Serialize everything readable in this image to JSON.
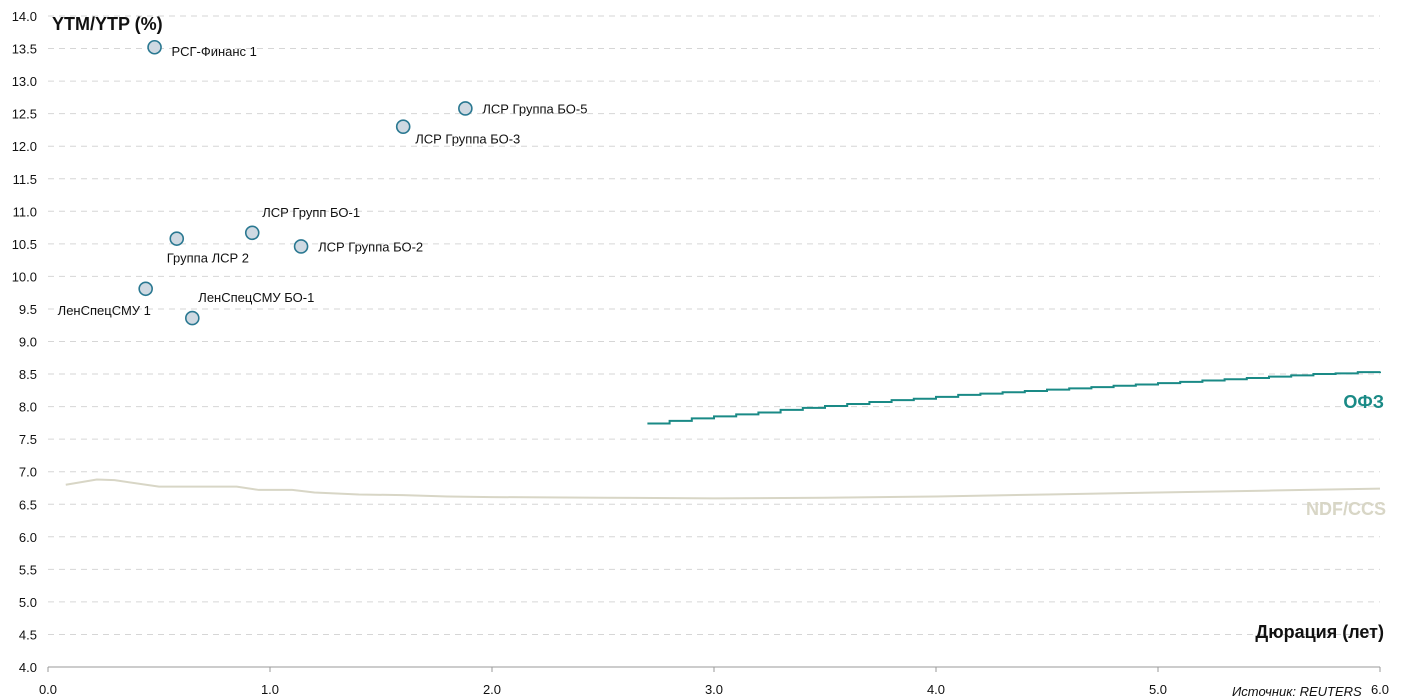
{
  "chart_data": {
    "type": "scatter",
    "ylabel": "YTM/YTP (%)",
    "xlabel": "Дюрация (лет)",
    "source": "Источник: REUTERS",
    "xlim": [
      0,
      6
    ],
    "ylim": [
      4,
      14
    ],
    "x_ticks": [
      "0.0",
      "1.0",
      "2.0",
      "3.0",
      "4.0",
      "5.0",
      "6.0"
    ],
    "y_ticks": [
      "4.0",
      "4.5",
      "5.0",
      "5.5",
      "6.0",
      "6.5",
      "7.0",
      "7.5",
      "8.0",
      "8.5",
      "9.0",
      "9.5",
      "10.0",
      "10.5",
      "11.0",
      "11.5",
      "12.0",
      "12.5",
      "13.0",
      "13.5",
      "14.0"
    ],
    "grid": true,
    "points": [
      {
        "label": "РСГ-Финанс 1",
        "x": 0.48,
        "y": 13.52
      },
      {
        "label": "ЛСР Группа БО-5",
        "x": 1.88,
        "y": 12.58
      },
      {
        "label": "ЛСР Группа БО-3",
        "x": 1.6,
        "y": 12.3
      },
      {
        "label": "ЛСР Групп БО-1",
        "x": 0.92,
        "y": 10.67
      },
      {
        "label": "Группа ЛСР 2",
        "x": 0.58,
        "y": 10.58
      },
      {
        "label": "ЛСР Группа БО-2",
        "x": 1.14,
        "y": 10.46
      },
      {
        "label": "ЛенСпецСМУ 1",
        "x": 0.44,
        "y": 9.81
      },
      {
        "label": "ЛенСпецСМУ БО-1",
        "x": 0.65,
        "y": 9.36
      }
    ],
    "series": [
      {
        "name": "ОФЗ",
        "color": "#1a8a86",
        "x": [
          2.7,
          2.8,
          2.9,
          3.0,
          3.1,
          3.2,
          3.3,
          3.4,
          3.5,
          3.6,
          3.7,
          3.8,
          3.9,
          4.0,
          4.1,
          4.2,
          4.3,
          4.4,
          4.5,
          4.6,
          4.7,
          4.8,
          4.9,
          5.0,
          5.1,
          5.2,
          5.3,
          5.4,
          5.5,
          5.6,
          5.7,
          5.8,
          5.9,
          6.0
        ],
        "values": [
          7.74,
          7.78,
          7.82,
          7.85,
          7.88,
          7.91,
          7.95,
          7.98,
          8.01,
          8.04,
          8.07,
          8.1,
          8.12,
          8.15,
          8.18,
          8.2,
          8.22,
          8.24,
          8.26,
          8.28,
          8.3,
          8.32,
          8.34,
          8.36,
          8.38,
          8.4,
          8.42,
          8.44,
          8.46,
          8.48,
          8.5,
          8.51,
          8.53,
          8.54
        ]
      },
      {
        "name": "NDF/CCS",
        "color": "#d8d6c6",
        "x": [
          0.08,
          0.22,
          0.3,
          0.5,
          0.85,
          0.95,
          1.1,
          1.2,
          1.4,
          1.6,
          1.8,
          2.0,
          2.5,
          3.0,
          3.5,
          4.0,
          4.5,
          5.0,
          5.5,
          6.0
        ],
        "values": [
          6.8,
          6.88,
          6.87,
          6.77,
          6.77,
          6.72,
          6.72,
          6.68,
          6.65,
          6.64,
          6.62,
          6.61,
          6.6,
          6.59,
          6.6,
          6.62,
          6.65,
          6.68,
          6.71,
          6.74
        ]
      }
    ]
  }
}
